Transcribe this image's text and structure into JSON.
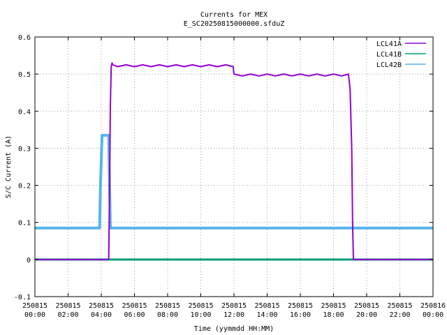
{
  "chart_data": {
    "type": "line",
    "title": "Currents for MEX",
    "subtitle": "E_SC20250815000000.sfduZ",
    "xlabel": "Time (yymmdd HH:MM)",
    "ylabel": "S/C Current (A)",
    "x_unit": "hours",
    "xlim": [
      0,
      24
    ],
    "ylim": [
      -0.1,
      0.6
    ],
    "yticks": [
      -0.1,
      0,
      0.1,
      0.2,
      0.3,
      0.4,
      0.5,
      0.6
    ],
    "ytick_labels": [
      "-0.1",
      "0",
      "0.1",
      "0.2",
      "0.3",
      "0.4",
      "0.5",
      "0.6"
    ],
    "xticks": [
      0,
      2,
      4,
      6,
      8,
      10,
      12,
      14,
      16,
      18,
      20,
      22,
      24
    ],
    "xtick_labels": [
      [
        "250815",
        "00:00"
      ],
      [
        "250815",
        "02:00"
      ],
      [
        "250815",
        "04:00"
      ],
      [
        "250815",
        "06:00"
      ],
      [
        "250815",
        "08:00"
      ],
      [
        "250815",
        "10:00"
      ],
      [
        "250815",
        "12:00"
      ],
      [
        "250815",
        "14:00"
      ],
      [
        "250815",
        "16:00"
      ],
      [
        "250815",
        "18:00"
      ],
      [
        "250815",
        "20:00"
      ],
      [
        "250815",
        "22:00"
      ],
      [
        "250816",
        "00:00"
      ]
    ],
    "grid": true,
    "legend_position": "top-right",
    "series": [
      {
        "name": "LCL41A",
        "color": "#9400d3",
        "x": [
          0,
          4.45,
          4.5,
          4.55,
          4.6,
          4.65,
          4.7,
          5.0,
          5.5,
          6.0,
          6.5,
          7.0,
          7.5,
          8.0,
          8.5,
          9.0,
          9.5,
          10.0,
          10.5,
          11.0,
          11.5,
          11.95,
          12.0,
          12.5,
          13.0,
          13.5,
          14.0,
          14.5,
          15.0,
          15.5,
          16.0,
          16.5,
          17.0,
          17.5,
          18.0,
          18.5,
          18.9,
          19.0,
          19.1,
          19.15,
          19.2,
          24
        ],
        "y": [
          0.0,
          0.0,
          0.2,
          0.42,
          0.52,
          0.53,
          0.525,
          0.52,
          0.525,
          0.52,
          0.525,
          0.52,
          0.525,
          0.52,
          0.525,
          0.52,
          0.525,
          0.52,
          0.525,
          0.52,
          0.525,
          0.52,
          0.5,
          0.495,
          0.5,
          0.495,
          0.5,
          0.495,
          0.5,
          0.495,
          0.5,
          0.495,
          0.5,
          0.495,
          0.5,
          0.495,
          0.5,
          0.46,
          0.3,
          0.1,
          0.0,
          0.0
        ]
      },
      {
        "name": "LCL41B",
        "color": "#009e73",
        "x": [
          0,
          24
        ],
        "y": [
          0.0,
          0.0
        ]
      },
      {
        "name": "LCL42B",
        "color": "#56b4e9",
        "x": [
          0,
          3.9,
          3.95,
          4.05,
          4.45,
          4.5,
          4.55,
          24
        ],
        "y": [
          0.085,
          0.085,
          0.2,
          0.335,
          0.335,
          0.2,
          0.085,
          0.085
        ]
      }
    ]
  }
}
